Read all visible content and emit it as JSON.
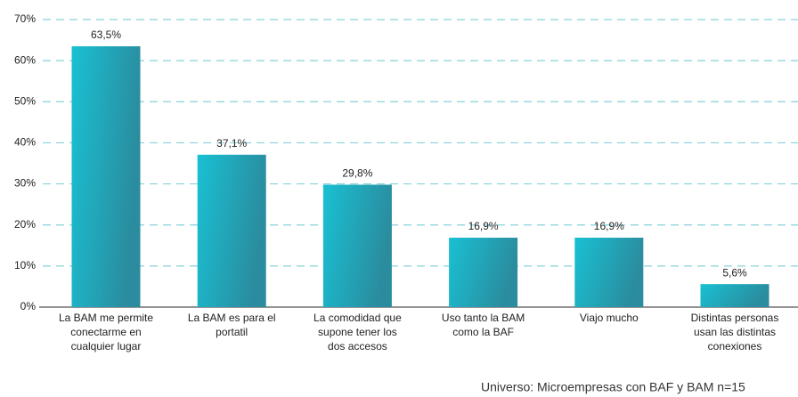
{
  "chart_data": {
    "type": "bar",
    "categories": [
      [
        "La BAM me permite",
        "conectarme en",
        "cualquier lugar"
      ],
      [
        "La BAM es para el",
        "portatil"
      ],
      [
        "La comodidad que",
        "supone tener los",
        "dos accesos"
      ],
      [
        "Uso tanto la BAM",
        "como la BAF"
      ],
      [
        "Viajo mucho"
      ],
      [
        "Distintas personas",
        "usan las distintas",
        "conexiones"
      ]
    ],
    "values": [
      63.5,
      37.1,
      29.8,
      16.9,
      16.9,
      5.6
    ],
    "value_labels": [
      "63,5%",
      "37,1%",
      "29,8%",
      "16,9%",
      "16,9%",
      "5,6%"
    ],
    "color": "#1ab8cc",
    "ylim": [
      0,
      70
    ],
    "yticks": [
      {
        "value": 0,
        "label": "0%"
      },
      {
        "value": 10,
        "label": "10%"
      },
      {
        "value": 20,
        "label": "20%"
      },
      {
        "value": 30,
        "label": "30%"
      },
      {
        "value": 40,
        "label": "40%"
      },
      {
        "value": 50,
        "label": "50%"
      },
      {
        "value": 60,
        "label": "60%"
      },
      {
        "value": 70,
        "label": "70%"
      }
    ],
    "grid": true,
    "note": "Universo: Microempresas con BAF y BAM n=15"
  }
}
